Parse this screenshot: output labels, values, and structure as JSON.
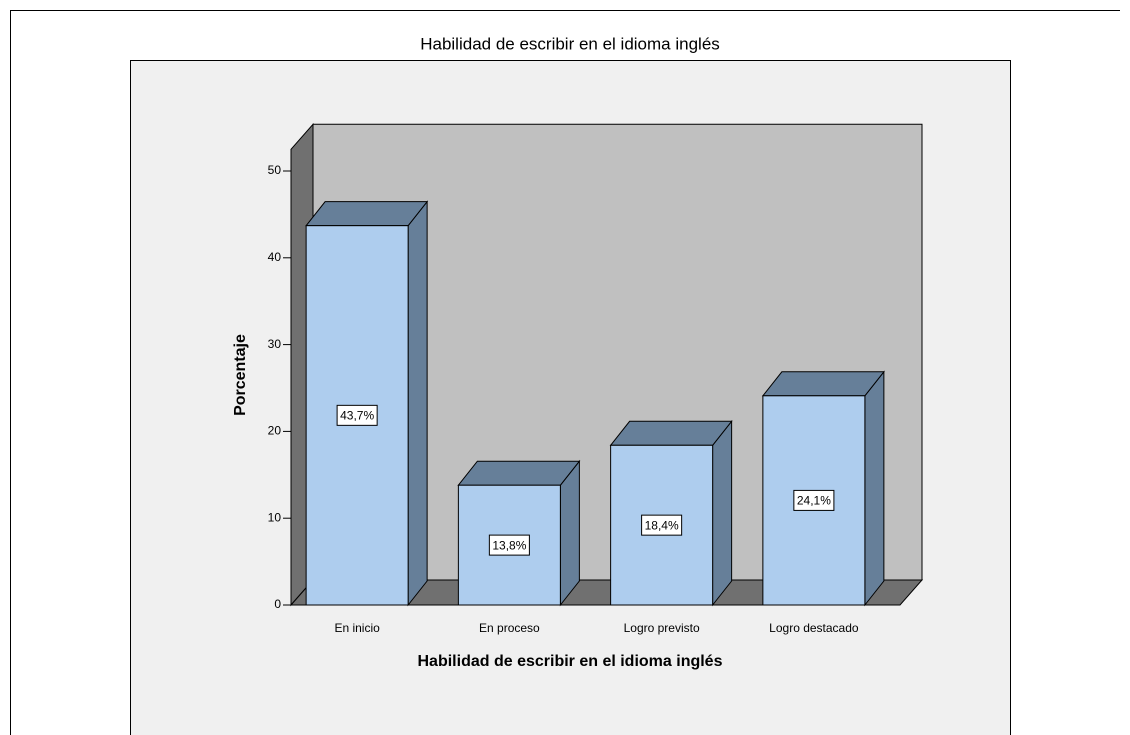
{
  "chart_data": {
    "type": "bar3d",
    "title": "Habilidad de escribir en el idioma inglés",
    "xlabel": "Habilidad de escribir en el idioma inglés",
    "ylabel": "Porcentaje",
    "categories": [
      "En inicio",
      "En proceso",
      "Logro previsto",
      "Logro destacado"
    ],
    "values": [
      43.7,
      13.8,
      18.4,
      24.1
    ],
    "value_labels": [
      "43,7%",
      "13,8%",
      "18,4%",
      "24,1%"
    ],
    "color": "#aecdee",
    "ylim": [
      0,
      52.5
    ],
    "yticks": [
      0,
      10,
      20,
      30,
      40,
      50
    ]
  }
}
